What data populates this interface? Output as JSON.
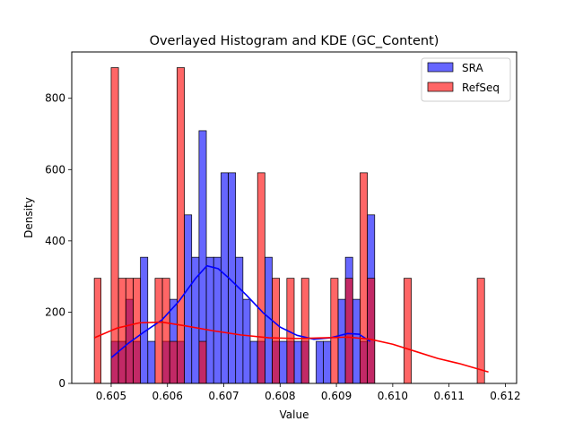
{
  "chart_data": {
    "type": "histogram",
    "title": "Overlayed Histogram and KDE (GC_Content)",
    "xlabel": "Value",
    "ylabel": "Density",
    "xlim": [
      0.6043,
      0.6122
    ],
    "ylim": [
      0,
      930
    ],
    "xticks": [
      0.605,
      0.606,
      0.607,
      0.608,
      0.609,
      0.61,
      0.611,
      0.612
    ],
    "yticks": [
      0,
      200,
      400,
      600,
      800
    ],
    "legend_position": "top-right",
    "grid": false,
    "series": [
      {
        "name": "SRA",
        "color": "#0000ff",
        "kde_color": "#0000ff",
        "bars": [
          {
            "x0": 0.605,
            "x1": 0.60513,
            "value": 118
          },
          {
            "x0": 0.60513,
            "x1": 0.60526,
            "value": 118
          },
          {
            "x0": 0.60526,
            "x1": 0.60539,
            "value": 236
          },
          {
            "x0": 0.60539,
            "x1": 0.60552,
            "value": 118
          },
          {
            "x0": 0.60552,
            "x1": 0.60565,
            "value": 354
          },
          {
            "x0": 0.60565,
            "x1": 0.60578,
            "value": 118
          },
          {
            "x0": 0.60591,
            "x1": 0.60604,
            "value": 118
          },
          {
            "x0": 0.60604,
            "x1": 0.60617,
            "value": 236
          },
          {
            "x0": 0.60617,
            "x1": 0.6063,
            "value": 118
          },
          {
            "x0": 0.6063,
            "x1": 0.60643,
            "value": 473
          },
          {
            "x0": 0.60643,
            "x1": 0.60656,
            "value": 354
          },
          {
            "x0": 0.60656,
            "x1": 0.60669,
            "value": 709
          },
          {
            "x0": 0.60669,
            "x1": 0.60682,
            "value": 354
          },
          {
            "x0": 0.60682,
            "x1": 0.60695,
            "value": 354
          },
          {
            "x0": 0.60695,
            "x1": 0.60708,
            "value": 591
          },
          {
            "x0": 0.60708,
            "x1": 0.60721,
            "value": 591
          },
          {
            "x0": 0.60721,
            "x1": 0.60734,
            "value": 354
          },
          {
            "x0": 0.60734,
            "x1": 0.60747,
            "value": 236
          },
          {
            "x0": 0.60747,
            "x1": 0.6076,
            "value": 118
          },
          {
            "x0": 0.6076,
            "x1": 0.60773,
            "value": 118
          },
          {
            "x0": 0.60773,
            "x1": 0.60786,
            "value": 354
          },
          {
            "x0": 0.60786,
            "x1": 0.60799,
            "value": 118
          },
          {
            "x0": 0.60799,
            "x1": 0.60812,
            "value": 118
          },
          {
            "x0": 0.60812,
            "x1": 0.60825,
            "value": 118
          },
          {
            "x0": 0.60825,
            "x1": 0.60838,
            "value": 118
          },
          {
            "x0": 0.60838,
            "x1": 0.60851,
            "value": 118
          },
          {
            "x0": 0.60864,
            "x1": 0.60877,
            "value": 118
          },
          {
            "x0": 0.60877,
            "x1": 0.6089,
            "value": 118
          },
          {
            "x0": 0.60903,
            "x1": 0.60916,
            "value": 236
          },
          {
            "x0": 0.60916,
            "x1": 0.60929,
            "value": 354
          },
          {
            "x0": 0.60929,
            "x1": 0.60942,
            "value": 236
          },
          {
            "x0": 0.60942,
            "x1": 0.60955,
            "value": 118
          },
          {
            "x0": 0.60955,
            "x1": 0.60968,
            "value": 473
          }
        ],
        "kde": [
          [
            0.605,
            72
          ],
          [
            0.6053,
            112
          ],
          [
            0.6056,
            146
          ],
          [
            0.6059,
            178
          ],
          [
            0.6062,
            230
          ],
          [
            0.6065,
            295
          ],
          [
            0.6067,
            330
          ],
          [
            0.6069,
            322
          ],
          [
            0.6071,
            294
          ],
          [
            0.6074,
            248
          ],
          [
            0.6077,
            198
          ],
          [
            0.608,
            158
          ],
          [
            0.6083,
            135
          ],
          [
            0.6086,
            124
          ],
          [
            0.6089,
            128
          ],
          [
            0.6092,
            140
          ],
          [
            0.6094,
            138
          ],
          [
            0.6096,
            118
          ]
        ]
      },
      {
        "name": "RefSeq",
        "color": "#ff0000",
        "kde_color": "#ff0000",
        "bars": [
          {
            "x0": 0.6047,
            "x1": 0.60482,
            "value": 295
          },
          {
            "x0": 0.605,
            "x1": 0.60513,
            "value": 886
          },
          {
            "x0": 0.60513,
            "x1": 0.60526,
            "value": 295
          },
          {
            "x0": 0.60526,
            "x1": 0.60539,
            "value": 295
          },
          {
            "x0": 0.60539,
            "x1": 0.60552,
            "value": 295
          },
          {
            "x0": 0.60578,
            "x1": 0.60591,
            "value": 295
          },
          {
            "x0": 0.60591,
            "x1": 0.60604,
            "value": 295
          },
          {
            "x0": 0.60604,
            "x1": 0.60617,
            "value": 118
          },
          {
            "x0": 0.60617,
            "x1": 0.6063,
            "value": 886
          },
          {
            "x0": 0.60656,
            "x1": 0.60669,
            "value": 118
          },
          {
            "x0": 0.6076,
            "x1": 0.60773,
            "value": 591
          },
          {
            "x0": 0.60786,
            "x1": 0.60799,
            "value": 295
          },
          {
            "x0": 0.60812,
            "x1": 0.60825,
            "value": 295
          },
          {
            "x0": 0.60838,
            "x1": 0.60851,
            "value": 295
          },
          {
            "x0": 0.6089,
            "x1": 0.60903,
            "value": 295
          },
          {
            "x0": 0.60916,
            "x1": 0.60929,
            "value": 295
          },
          {
            "x0": 0.60942,
            "x1": 0.60955,
            "value": 591
          },
          {
            "x0": 0.60955,
            "x1": 0.60968,
            "value": 295
          },
          {
            "x0": 0.6102,
            "x1": 0.61033,
            "value": 295
          },
          {
            "x0": 0.6115,
            "x1": 0.61163,
            "value": 295
          }
        ],
        "kde": [
          [
            0.6047,
            128
          ],
          [
            0.6051,
            155
          ],
          [
            0.6055,
            170
          ],
          [
            0.6059,
            172
          ],
          [
            0.6063,
            162
          ],
          [
            0.6068,
            148
          ],
          [
            0.6073,
            136
          ],
          [
            0.6078,
            128
          ],
          [
            0.6083,
            126
          ],
          [
            0.6088,
            128
          ],
          [
            0.6092,
            130
          ],
          [
            0.6096,
            124
          ],
          [
            0.61,
            110
          ],
          [
            0.6104,
            90
          ],
          [
            0.6108,
            70
          ],
          [
            0.6112,
            55
          ],
          [
            0.6117,
            32
          ]
        ]
      }
    ]
  }
}
